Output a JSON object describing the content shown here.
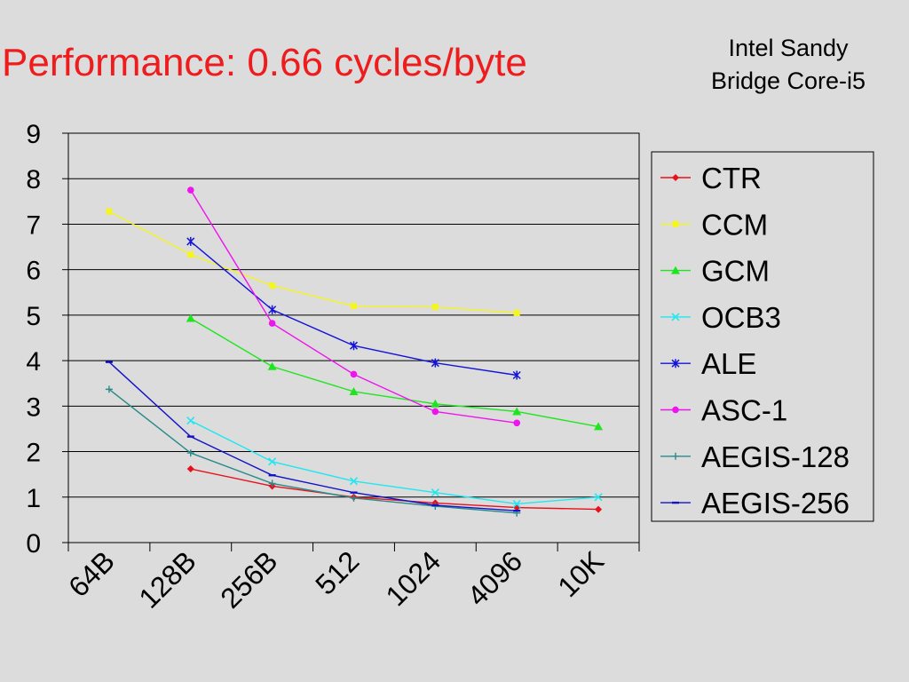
{
  "slide": {
    "title": "Performance: 0.66 cycles/byte",
    "subtitle_line1": "Intel Sandy",
    "subtitle_line2": "Bridge Core-i5"
  },
  "chart_data": {
    "type": "line",
    "categories": [
      "64B",
      "128B",
      "256B",
      "512",
      "1024",
      "4096",
      "10K"
    ],
    "ylim": [
      0,
      9
    ],
    "yticks": [
      0,
      1,
      2,
      3,
      4,
      5,
      6,
      7,
      8,
      9
    ],
    "grid": true,
    "legend": "right",
    "series": [
      {
        "name": "CTR",
        "color": "#e8101a",
        "marker": "diamond",
        "values": [
          null,
          1.62,
          1.24,
          1.0,
          0.87,
          0.77,
          0.73
        ]
      },
      {
        "name": "CCM",
        "color": "#f5f51f",
        "marker": "square",
        "values": [
          7.28,
          6.33,
          5.65,
          5.2,
          5.18,
          5.05,
          null
        ]
      },
      {
        "name": "GCM",
        "color": "#1ee61e",
        "marker": "triangle",
        "values": [
          null,
          4.93,
          3.87,
          3.32,
          3.05,
          2.88,
          2.55
        ]
      },
      {
        "name": "OCB3",
        "color": "#22e6f0",
        "marker": "x",
        "values": [
          null,
          2.68,
          1.78,
          1.35,
          1.1,
          0.85,
          1.0
        ]
      },
      {
        "name": "ALE",
        "color": "#1414d8",
        "marker": "star",
        "values": [
          null,
          6.62,
          5.12,
          4.33,
          3.95,
          3.68,
          null
        ]
      },
      {
        "name": "ASC-1",
        "color": "#ee14ee",
        "marker": "circle",
        "values": [
          null,
          7.75,
          4.82,
          3.7,
          2.88,
          2.63,
          null
        ]
      },
      {
        "name": "AEGIS-128",
        "color": "#2a8a8a",
        "marker": "plus",
        "values": [
          3.37,
          1.97,
          1.3,
          0.98,
          0.8,
          0.65,
          null
        ]
      },
      {
        "name": "AEGIS-256",
        "color": "#1212c8",
        "marker": "dash",
        "values": [
          3.97,
          2.33,
          1.48,
          1.1,
          0.82,
          0.7,
          null
        ]
      }
    ]
  }
}
